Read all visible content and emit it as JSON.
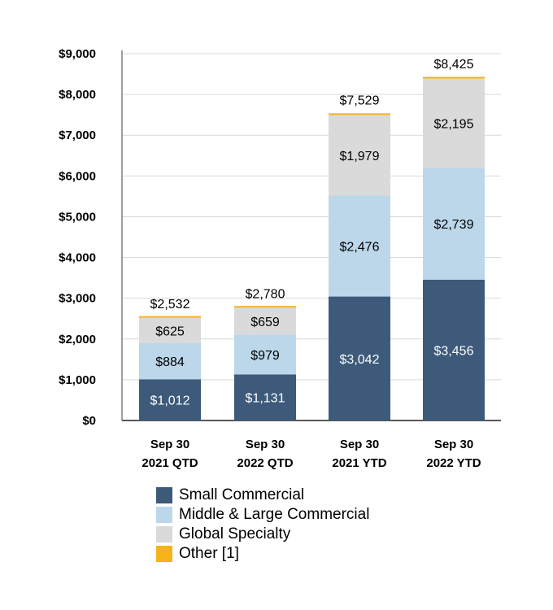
{
  "chart_data": {
    "type": "bar",
    "stacked": true,
    "categories": [
      [
        "Sep 30",
        "2021 QTD"
      ],
      [
        "Sep 30",
        "2022 QTD"
      ],
      [
        "Sep 30",
        "2021 YTD"
      ],
      [
        "Sep 30",
        "2022 YTD"
      ]
    ],
    "series": [
      {
        "name": "Small Commercial",
        "color": "#3d5a7a",
        "label_color": "#ffffff",
        "values": [
          1012,
          1131,
          3042,
          3456
        ],
        "labels": [
          "$1,012",
          "$1,131",
          "$3,042",
          "$3,456"
        ]
      },
      {
        "name": "Middle & Large Commercial",
        "color": "#bcd7ea",
        "label_color": "#000000",
        "values": [
          884,
          979,
          2476,
          2739
        ],
        "labels": [
          "$884",
          "$979",
          "$2,476",
          "$2,739"
        ]
      },
      {
        "name": "Global Specialty",
        "color": "#dadada",
        "label_color": "#000000",
        "values": [
          625,
          659,
          1979,
          2195
        ],
        "labels": [
          "$625",
          "$659",
          "$1,979",
          "$2,195"
        ]
      },
      {
        "name": "Other [1]",
        "color": "#f5b31a",
        "label_color": "#000000",
        "values": [
          11,
          11,
          32,
          35
        ],
        "labels": [
          "",
          "",
          "",
          ""
        ]
      }
    ],
    "totals": [
      2532,
      2780,
      7529,
      8425
    ],
    "total_labels": [
      "$2,532",
      "$2,780",
      "$7,529",
      "$8,425"
    ],
    "ylim": [
      0,
      9000
    ],
    "yticks": [
      0,
      1000,
      2000,
      3000,
      4000,
      5000,
      6000,
      7000,
      8000,
      9000
    ],
    "ytick_labels": [
      "$0",
      "$1,000",
      "$2,000",
      "$3,000",
      "$4,000",
      "$5,000",
      "$6,000",
      "$7,000",
      "$8,000",
      "$9,000"
    ],
    "grid": true,
    "legend_position": "bottom",
    "title": "",
    "xlabel": "",
    "ylabel": ""
  }
}
